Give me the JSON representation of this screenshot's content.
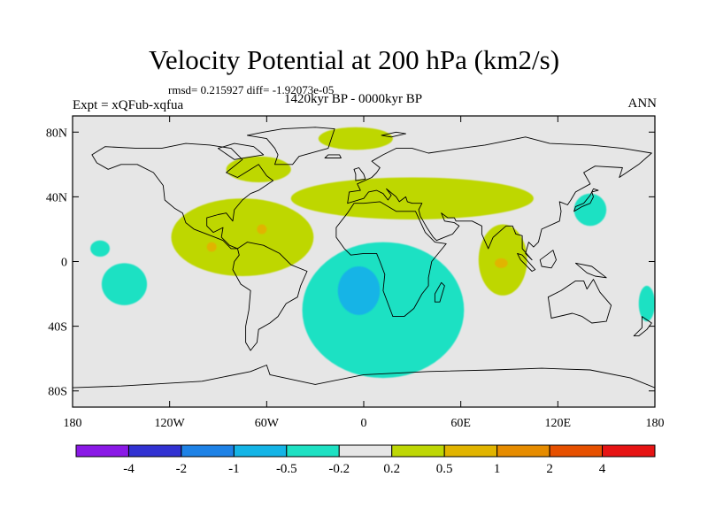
{
  "title": "Velocity Potential at 200 hPa (km2/s)",
  "stats": "rmsd= 0.215927 diff= -1.92073e-05",
  "experiment": "Expt = xQFub-xqfua",
  "period": "1420kyr BP - 0000kyr BP",
  "season": "ANN",
  "map": {
    "lat_range": [
      -90,
      90
    ],
    "lon_range": [
      -180,
      180
    ],
    "lat_ticks": [
      {
        "value": 80,
        "label": "80N"
      },
      {
        "value": 40,
        "label": "40N"
      },
      {
        "value": 0,
        "label": "0"
      },
      {
        "value": -40,
        "label": "40S"
      },
      {
        "value": -80,
        "label": "80S"
      }
    ],
    "lon_ticks": [
      {
        "value": -180,
        "label": "180"
      },
      {
        "value": -120,
        "label": "120W"
      },
      {
        "value": -60,
        "label": "60W"
      },
      {
        "value": 0,
        "label": "0"
      },
      {
        "value": 60,
        "label": "60E"
      },
      {
        "value": 120,
        "label": "120E"
      },
      {
        "value": 180,
        "label": "180"
      }
    ],
    "background_color": "#e6e6e6"
  },
  "colorbar": {
    "colors": [
      "#8a19e6",
      "#3232d2",
      "#1e82e6",
      "#14b4e6",
      "#1ee1c3",
      "#e6e6e6",
      "#bed705",
      "#e1b400",
      "#e68c00",
      "#e65000",
      "#e61414"
    ],
    "labels": [
      "-4",
      "-2",
      "-1",
      "-0.5",
      "-0.2",
      "0.2",
      "0.5",
      "1",
      "2",
      "4"
    ]
  },
  "anomaly_regions": [
    {
      "name": "arctic-positive",
      "level": "0.2 to 0.5",
      "color": "#bed705",
      "lon_center": -5,
      "lat_center": 76,
      "lon_radius": 23,
      "lat_radius": 7
    },
    {
      "name": "labrador-positive",
      "level": "0.2 to 0.5",
      "color": "#bed705",
      "lon_center": -65,
      "lat_center": 57,
      "lon_radius": 20,
      "lat_radius": 8
    },
    {
      "name": "central-america-positive",
      "level": "0.2 to 0.5",
      "color": "#bed705",
      "lon_center": -75,
      "lat_center": 15,
      "lon_radius": 44,
      "lat_radius": 24
    },
    {
      "name": "north-atlantic-africa-positive",
      "level": "0.2 to 0.5",
      "color": "#bed705",
      "lon_center": 30,
      "lat_center": 39,
      "lon_radius": 75,
      "lat_radius": 13
    },
    {
      "name": "indian-ocean-positive",
      "level": "0.2 to 0.5",
      "color": "#bed705",
      "lon_center": 86,
      "lat_center": 1,
      "lon_radius": 15,
      "lat_radius": 22
    },
    {
      "name": "central-america-max",
      "level": "0.5 to 1",
      "color": "#e1b400",
      "lon_center": -94,
      "lat_center": 9,
      "lon_radius": 3,
      "lat_radius": 3
    },
    {
      "name": "caribbean-max",
      "level": "0.5 to 1",
      "color": "#e1b400",
      "lon_center": -63,
      "lat_center": 20,
      "lon_radius": 3,
      "lat_radius": 3
    },
    {
      "name": "indian-ocean-max",
      "level": "0.5 to 1",
      "color": "#e1b400",
      "lon_center": 85,
      "lat_center": -1,
      "lon_radius": 4,
      "lat_radius": 3
    },
    {
      "name": "south-atlantic-africa-negative",
      "level": "-0.5 to -0.2",
      "color": "#1ee1c3",
      "lon_center": 12,
      "lat_center": -30,
      "lon_radius": 50,
      "lat_radius": 42
    },
    {
      "name": "south-atlantic-minimum",
      "level": "-1 to -0.5",
      "color": "#14b4e6",
      "lon_center": -3,
      "lat_center": -18,
      "lon_radius": 13,
      "lat_radius": 15
    },
    {
      "name": "east-pacific-negative",
      "level": "-0.5 to -0.2",
      "color": "#1ee1c3",
      "lon_center": -148,
      "lat_center": -14,
      "lon_radius": 14,
      "lat_radius": 13
    },
    {
      "name": "central-pacific-negative",
      "level": "-0.5 to -0.2",
      "color": "#1ee1c3",
      "lon_center": -163,
      "lat_center": 8,
      "lon_radius": 6,
      "lat_radius": 5
    },
    {
      "name": "japan-negative",
      "level": "-0.5 to -0.2",
      "color": "#1ee1c3",
      "lon_center": 140,
      "lat_center": 32,
      "lon_radius": 10,
      "lat_radius": 10
    },
    {
      "name": "new-zealand-negative",
      "level": "-0.5 to -0.2",
      "color": "#1ee1c3",
      "lon_center": 175,
      "lat_center": -26,
      "lon_radius": 5,
      "lat_radius": 11
    }
  ],
  "landmasses": [
    {
      "name": "north-america",
      "coords": [
        [
          -168,
          66
        ],
        [
          -160,
          71
        ],
        [
          -140,
          70
        ],
        [
          -125,
          70
        ],
        [
          -110,
          73
        ],
        [
          -95,
          72
        ],
        [
          -82,
          70
        ],
        [
          -75,
          63
        ],
        [
          -85,
          55
        ],
        [
          -78,
          52
        ],
        [
          -65,
          60
        ],
        [
          -60,
          53
        ],
        [
          -56,
          50
        ],
        [
          -65,
          44
        ],
        [
          -70,
          42
        ],
        [
          -75,
          38
        ],
        [
          -80,
          32
        ],
        [
          -81,
          25
        ],
        [
          -85,
          30
        ],
        [
          -90,
          29
        ],
        [
          -97,
          27
        ],
        [
          -97,
          22
        ],
        [
          -93,
          18
        ],
        [
          -87,
          21
        ],
        [
          -88,
          15
        ],
        [
          -83,
          10
        ],
        [
          -78,
          8
        ],
        [
          -82,
          8
        ],
        [
          -87,
          13
        ],
        [
          -92,
          15
        ],
        [
          -105,
          20
        ],
        [
          -110,
          24
        ],
        [
          -112,
          30
        ],
        [
          -117,
          33
        ],
        [
          -123,
          38
        ],
        [
          -124,
          47
        ],
        [
          -130,
          55
        ],
        [
          -140,
          60
        ],
        [
          -150,
          60
        ],
        [
          -158,
          57
        ],
        [
          -165,
          61
        ]
      ]
    },
    {
      "name": "greenland",
      "coords": [
        [
          -55,
          60
        ],
        [
          -44,
          60
        ],
        [
          -40,
          65
        ],
        [
          -22,
          70
        ],
        [
          -20,
          76
        ],
        [
          -18,
          82
        ],
        [
          -30,
          83
        ],
        [
          -50,
          82
        ],
        [
          -62,
          80
        ],
        [
          -72,
          78
        ],
        [
          -60,
          76
        ],
        [
          -55,
          70
        ],
        [
          -53,
          66
        ]
      ]
    },
    {
      "name": "south-america",
      "coords": [
        [
          -78,
          8
        ],
        [
          -72,
          12
        ],
        [
          -62,
          10
        ],
        [
          -52,
          5
        ],
        [
          -45,
          -2
        ],
        [
          -35,
          -6
        ],
        [
          -39,
          -15
        ],
        [
          -41,
          -22
        ],
        [
          -48,
          -26
        ],
        [
          -53,
          -34
        ],
        [
          -58,
          -38
        ],
        [
          -65,
          -42
        ],
        [
          -66,
          -50
        ],
        [
          -70,
          -55
        ],
        [
          -73,
          -50
        ],
        [
          -73,
          -40
        ],
        [
          -71,
          -30
        ],
        [
          -70,
          -18
        ],
        [
          -76,
          -14
        ],
        [
          -81,
          -5
        ],
        [
          -80,
          0
        ],
        [
          -77,
          4
        ]
      ]
    },
    {
      "name": "europe-asia",
      "coords": [
        [
          -10,
          36
        ],
        [
          -9,
          43
        ],
        [
          -2,
          44
        ],
        [
          -4,
          48
        ],
        [
          5,
          52
        ],
        [
          8,
          55
        ],
        [
          10,
          58
        ],
        [
          5,
          62
        ],
        [
          12,
          66
        ],
        [
          20,
          70
        ],
        [
          30,
          70
        ],
        [
          40,
          67
        ],
        [
          60,
          70
        ],
        [
          75,
          72
        ],
        [
          100,
          77
        ],
        [
          115,
          73
        ],
        [
          140,
          72
        ],
        [
          160,
          70
        ],
        [
          178,
          67
        ],
        [
          170,
          60
        ],
        [
          158,
          52
        ],
        [
          160,
          58
        ],
        [
          143,
          59
        ],
        [
          136,
          55
        ],
        [
          140,
          48
        ],
        [
          131,
          43
        ],
        [
          128,
          38
        ],
        [
          126,
          35
        ],
        [
          121,
          37
        ],
        [
          122,
          31
        ],
        [
          121,
          25
        ],
        [
          110,
          20
        ],
        [
          108,
          12
        ],
        [
          105,
          9
        ],
        [
          102,
          12
        ],
        [
          100,
          5
        ],
        [
          104,
          1
        ],
        [
          98,
          8
        ],
        [
          98,
          16
        ],
        [
          94,
          17
        ],
        [
          92,
          22
        ],
        [
          88,
          22
        ],
        [
          80,
          15
        ],
        [
          77,
          8
        ],
        [
          73,
          17
        ],
        [
          73,
          22
        ],
        [
          67,
          25
        ],
        [
          57,
          25
        ],
        [
          56,
          27
        ],
        [
          52,
          27
        ],
        [
          48,
          30
        ],
        [
          50,
          25
        ],
        [
          56,
          24
        ],
        [
          59,
          22
        ],
        [
          55,
          17
        ],
        [
          45,
          13
        ],
        [
          43,
          15
        ],
        [
          39,
          21
        ],
        [
          35,
          28
        ],
        [
          34,
          32
        ],
        [
          36,
          36
        ],
        [
          30,
          36
        ],
        [
          27,
          37
        ],
        [
          26,
          40
        ],
        [
          22,
          37
        ],
        [
          20,
          40
        ],
        [
          14,
          45
        ],
        [
          17,
          41
        ],
        [
          15,
          38
        ],
        [
          12,
          42
        ],
        [
          8,
          44
        ],
        [
          3,
          43
        ],
        [
          0,
          39
        ]
      ]
    },
    {
      "name": "africa",
      "coords": [
        [
          -17,
          21
        ],
        [
          -17,
          15
        ],
        [
          -12,
          8
        ],
        [
          -8,
          4
        ],
        [
          0,
          5
        ],
        [
          8,
          5
        ],
        [
          10,
          0
        ],
        [
          13,
          -8
        ],
        [
          12,
          -18
        ],
        [
          15,
          -26
        ],
        [
          18,
          -34
        ],
        [
          25,
          -34
        ],
        [
          31,
          -29
        ],
        [
          36,
          -20
        ],
        [
          40,
          -15
        ],
        [
          40,
          -10
        ],
        [
          42,
          0
        ],
        [
          51,
          11
        ],
        [
          44,
          12
        ],
        [
          38,
          18
        ],
        [
          32,
          31
        ],
        [
          20,
          31
        ],
        [
          10,
          37
        ],
        [
          0,
          36
        ],
        [
          -6,
          36
        ],
        [
          -10,
          30
        ]
      ]
    },
    {
      "name": "madagascar",
      "coords": [
        [
          44,
          -25
        ],
        [
          47,
          -25
        ],
        [
          50,
          -15
        ],
        [
          48,
          -13
        ],
        [
          44,
          -20
        ]
      ]
    },
    {
      "name": "australia",
      "coords": [
        [
          114,
          -22
        ],
        [
          122,
          -18
        ],
        [
          131,
          -12
        ],
        [
          136,
          -12
        ],
        [
          138,
          -17
        ],
        [
          142,
          -11
        ],
        [
          146,
          -19
        ],
        [
          153,
          -27
        ],
        [
          150,
          -37
        ],
        [
          141,
          -38
        ],
        [
          135,
          -34
        ],
        [
          129,
          -32
        ],
        [
          116,
          -35
        ]
      ]
    },
    {
      "name": "antarctica",
      "coords": [
        [
          -180,
          -78
        ],
        [
          -150,
          -77
        ],
        [
          -100,
          -74
        ],
        [
          -70,
          -68
        ],
        [
          -60,
          -64
        ],
        [
          -58,
          -70
        ],
        [
          -30,
          -76
        ],
        [
          0,
          -70
        ],
        [
          40,
          -68
        ],
        [
          80,
          -67
        ],
        [
          110,
          -66
        ],
        [
          140,
          -67
        ],
        [
          165,
          -72
        ],
        [
          180,
          -78
        ],
        [
          180,
          -90
        ],
        [
          -180,
          -90
        ]
      ]
    },
    {
      "name": "japan",
      "coords": [
        [
          130,
          31
        ],
        [
          135,
          34
        ],
        [
          140,
          36
        ],
        [
          142,
          40
        ],
        [
          141,
          43
        ],
        [
          145,
          44
        ],
        [
          142,
          45
        ],
        [
          140,
          41
        ],
        [
          136,
          36
        ],
        [
          131,
          34
        ]
      ]
    },
    {
      "name": "british-isles",
      "coords": [
        [
          -5,
          50
        ],
        [
          1,
          51
        ],
        [
          0,
          54
        ],
        [
          -3,
          58
        ],
        [
          -6,
          57
        ],
        [
          -5,
          54
        ]
      ]
    },
    {
      "name": "iceland",
      "coords": [
        [
          -24,
          64
        ],
        [
          -14,
          64
        ],
        [
          -15,
          66
        ],
        [
          -22,
          66
        ]
      ]
    },
    {
      "name": "borneo",
      "coords": [
        [
          109,
          1
        ],
        [
          117,
          7
        ],
        [
          119,
          1
        ],
        [
          116,
          -4
        ],
        [
          110,
          -3
        ]
      ]
    },
    {
      "name": "sumatra",
      "coords": [
        [
          95,
          5
        ],
        [
          98,
          4
        ],
        [
          106,
          -5
        ],
        [
          104,
          -6
        ],
        [
          97,
          1
        ]
      ]
    },
    {
      "name": "new-guinea",
      "coords": [
        [
          131,
          -1
        ],
        [
          141,
          -3
        ],
        [
          150,
          -10
        ],
        [
          143,
          -9
        ],
        [
          138,
          -7
        ]
      ]
    },
    {
      "name": "new-zealand",
      "coords": [
        [
          172,
          -34
        ],
        [
          178,
          -38
        ],
        [
          175,
          -42
        ],
        [
          170,
          -46
        ],
        [
          167,
          -46
        ],
        [
          172,
          -41
        ]
      ]
    },
    {
      "name": "svalbard",
      "coords": [
        [
          11,
          78
        ],
        [
          20,
          80
        ],
        [
          26,
          79
        ],
        [
          17,
          77
        ]
      ]
    },
    {
      "name": "baffin-island",
      "coords": [
        [
          -80,
          63
        ],
        [
          -62,
          66
        ],
        [
          -68,
          71
        ],
        [
          -80,
          73
        ],
        [
          -90,
          70
        ]
      ]
    }
  ]
}
